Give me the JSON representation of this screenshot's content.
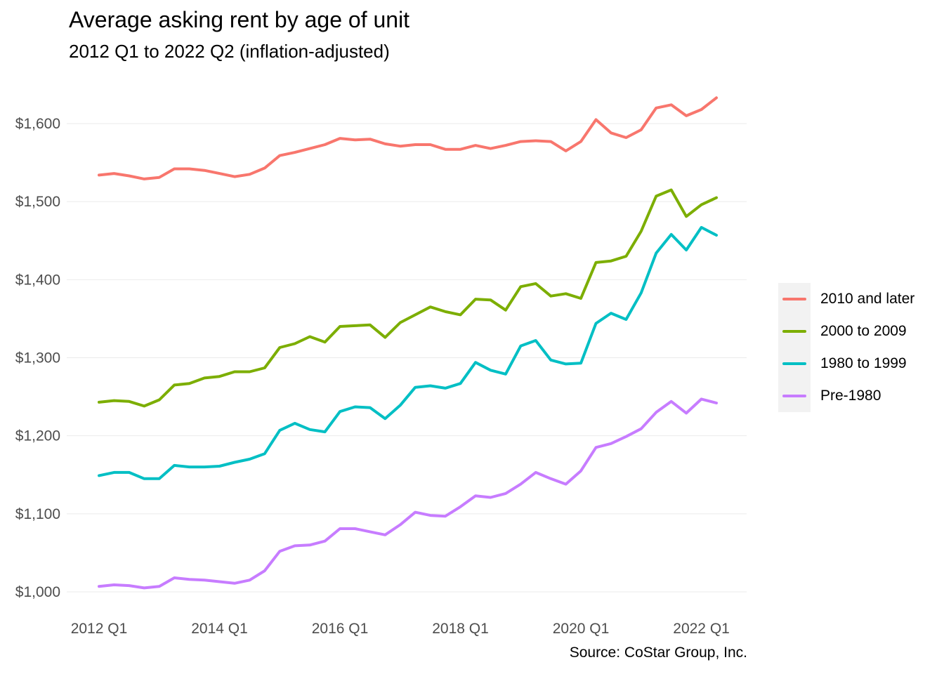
{
  "chart_data": {
    "type": "line",
    "title": "Average asking rent by age of unit",
    "subtitle": "2012 Q1 to 2022 Q2 (inflation-adjusted)",
    "caption": "Source: CoStar Group, Inc.",
    "xlabel": "",
    "ylabel": "",
    "ylim": [
      970,
      1650
    ],
    "yticks": [
      1000,
      1100,
      1200,
      1300,
      1400,
      1500,
      1600
    ],
    "ytick_labels": [
      "$1,000",
      "$1,100",
      "$1,200",
      "$1,300",
      "$1,400",
      "$1,500",
      "$1,600"
    ],
    "xticks": [
      0,
      8,
      16,
      24,
      32,
      40
    ],
    "xtick_labels": [
      "2012 Q1",
      "2014 Q1",
      "2016 Q1",
      "2018 Q1",
      "2020 Q1",
      "2022 Q1"
    ],
    "x": [
      "2012 Q1",
      "2012 Q2",
      "2012 Q3",
      "2012 Q4",
      "2013 Q1",
      "2013 Q2",
      "2013 Q3",
      "2013 Q4",
      "2014 Q1",
      "2014 Q2",
      "2014 Q3",
      "2014 Q4",
      "2015 Q1",
      "2015 Q2",
      "2015 Q3",
      "2015 Q4",
      "2016 Q1",
      "2016 Q2",
      "2016 Q3",
      "2016 Q4",
      "2017 Q1",
      "2017 Q2",
      "2017 Q3",
      "2017 Q4",
      "2018 Q1",
      "2018 Q2",
      "2018 Q3",
      "2018 Q4",
      "2019 Q1",
      "2019 Q2",
      "2019 Q3",
      "2019 Q4",
      "2020 Q1",
      "2020 Q2",
      "2020 Q3",
      "2020 Q4",
      "2021 Q1",
      "2021 Q2",
      "2021 Q3",
      "2021 Q4",
      "2022 Q1",
      "2022 Q2"
    ],
    "legend_position": "right",
    "grid": true,
    "series": [
      {
        "name": "2010 and later",
        "color": "#F8766D",
        "values": [
          1534,
          1536,
          1533,
          1529,
          1531,
          1542,
          1542,
          1540,
          1536,
          1532,
          1535,
          1543,
          1559,
          1563,
          1568,
          1573,
          1581,
          1579,
          1580,
          1574,
          1571,
          1573,
          1573,
          1567,
          1567,
          1572,
          1568,
          1572,
          1577,
          1578,
          1577,
          1565,
          1577,
          1605,
          1588,
          1582,
          1592,
          1620,
          1624,
          1610,
          1618,
          1633
        ]
      },
      {
        "name": "2000 to 2009",
        "color": "#7CAE00",
        "values": [
          1243,
          1245,
          1244,
          1238,
          1246,
          1265,
          1267,
          1274,
          1276,
          1282,
          1282,
          1287,
          1313,
          1318,
          1327,
          1320,
          1340,
          1341,
          1342,
          1326,
          1345,
          1355,
          1365,
          1359,
          1355,
          1375,
          1374,
          1361,
          1391,
          1395,
          1379,
          1382,
          1376,
          1422,
          1424,
          1430,
          1462,
          1507,
          1515,
          1481,
          1496,
          1505
        ]
      },
      {
        "name": "1980 to 1999",
        "color": "#00BFC4",
        "values": [
          1149,
          1153,
          1153,
          1145,
          1145,
          1162,
          1160,
          1160,
          1161,
          1166,
          1170,
          1177,
          1207,
          1216,
          1208,
          1205,
          1231,
          1237,
          1236,
          1222,
          1239,
          1262,
          1264,
          1261,
          1267,
          1294,
          1284,
          1279,
          1315,
          1322,
          1297,
          1292,
          1293,
          1344,
          1357,
          1349,
          1383,
          1434,
          1458,
          1438,
          1467,
          1457
        ]
      },
      {
        "name": "Pre-1980",
        "color": "#C77CFF",
        "values": [
          1007,
          1009,
          1008,
          1005,
          1007,
          1018,
          1016,
          1015,
          1013,
          1011,
          1015,
          1027,
          1052,
          1059,
          1060,
          1065,
          1081,
          1081,
          1077,
          1073,
          1086,
          1102,
          1098,
          1097,
          1109,
          1123,
          1121,
          1126,
          1138,
          1153,
          1145,
          1138,
          1155,
          1185,
          1190,
          1199,
          1209,
          1230,
          1244,
          1229,
          1247,
          1242
        ]
      }
    ]
  }
}
